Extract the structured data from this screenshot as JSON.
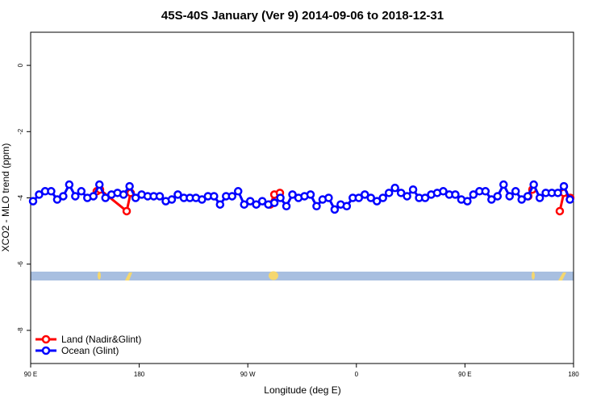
{
  "chart_data": {
    "type": "line",
    "title": "45S-40S January (Ver 9)   2014-09-06 to 2018-12-31",
    "xlabel": "Longitude (deg E)",
    "ylabel": "XCO2 - MLO trend (ppm)",
    "xlim": [
      90,
      540
    ],
    "ylim": [
      -9,
      1
    ],
    "xticks": [
      {
        "value": 90,
        "label": "90 E"
      },
      180,
      {
        "value": 270,
        "label": "90 W"
      },
      {
        "value": 360,
        "label": "0"
      },
      {
        "value": 450,
        "label": "90 E"
      },
      {
        "value": 540,
        "label": "180"
      }
    ],
    "yticks": [
      0,
      -2,
      -4,
      -6,
      -8
    ],
    "legend": "bottom-left",
    "series": [
      {
        "name": "Land (Nadir&Glint)",
        "color": "#ff0000",
        "x": [
          144.8,
          147.5,
          169.6,
          172.9,
          null,
          288.6,
          292,
          296.6,
          null,
          502.5,
          505.9,
          null,
          528.6,
          532,
          537.3
        ],
        "values": [
          -3.8,
          -3.75,
          -4.4,
          -3.85,
          null,
          -4.2,
          -3.9,
          -3.85,
          null,
          -3.95,
          -3.75,
          null,
          -4.4,
          -3.85,
          -4.0
        ]
      },
      {
        "name": "Ocean (Glint)",
        "color": "#0000ff",
        "x": [
          92,
          97,
          102,
          107,
          112,
          117,
          122,
          127,
          132,
          137,
          142,
          147,
          152,
          157,
          162,
          167,
          172,
          177,
          182,
          187,
          192,
          197,
          202,
          207,
          212,
          217,
          222,
          227,
          232,
          237,
          242,
          247,
          252,
          257,
          262,
          267,
          272,
          277,
          282,
          287,
          292,
          297,
          302,
          307,
          312,
          317,
          322,
          327,
          332,
          337,
          342,
          347,
          352,
          357,
          362,
          367,
          372,
          377,
          382,
          387,
          392,
          397,
          402,
          407,
          412,
          417,
          422,
          427,
          432,
          437,
          442,
          447,
          452,
          457,
          462,
          467,
          472,
          477,
          482,
          487,
          492,
          497,
          502,
          507,
          512,
          517,
          522,
          527,
          532,
          537
        ],
        "values": [
          -4.1,
          -3.9,
          -3.8,
          -3.8,
          -4.05,
          -3.95,
          -3.6,
          -3.95,
          -3.8,
          -4.0,
          -3.95,
          -3.6,
          -4.0,
          -3.9,
          -3.85,
          -3.9,
          -3.65,
          -4.0,
          -3.9,
          -3.95,
          -3.95,
          -3.95,
          -4.1,
          -4.05,
          -3.9,
          -4.0,
          -4.0,
          -4.0,
          -4.05,
          -3.95,
          -3.95,
          -4.2,
          -3.95,
          -3.95,
          -3.8,
          -4.2,
          -4.1,
          -4.2,
          -4.1,
          -4.2,
          -4.15,
          -4.0,
          -4.25,
          -3.9,
          -4.0,
          -3.95,
          -3.9,
          -4.25,
          -4.05,
          -4.0,
          -4.35,
          -4.2,
          -4.25,
          -4.0,
          -4.0,
          -3.9,
          -4.0,
          -4.1,
          -4.0,
          -3.85,
          -3.7,
          -3.85,
          -3.95,
          -3.75,
          -4.0,
          -4.0,
          -3.9,
          -3.85,
          -3.8,
          -3.9,
          -3.9,
          -4.05,
          -4.1,
          -3.9,
          -3.8,
          -3.8,
          -4.05,
          -3.95,
          -3.6,
          -3.95,
          -3.8,
          -4.05,
          -3.95,
          -3.6,
          -4.0,
          -3.85,
          -3.85,
          -3.85,
          -3.65,
          -4.05
        ]
      }
    ]
  }
}
